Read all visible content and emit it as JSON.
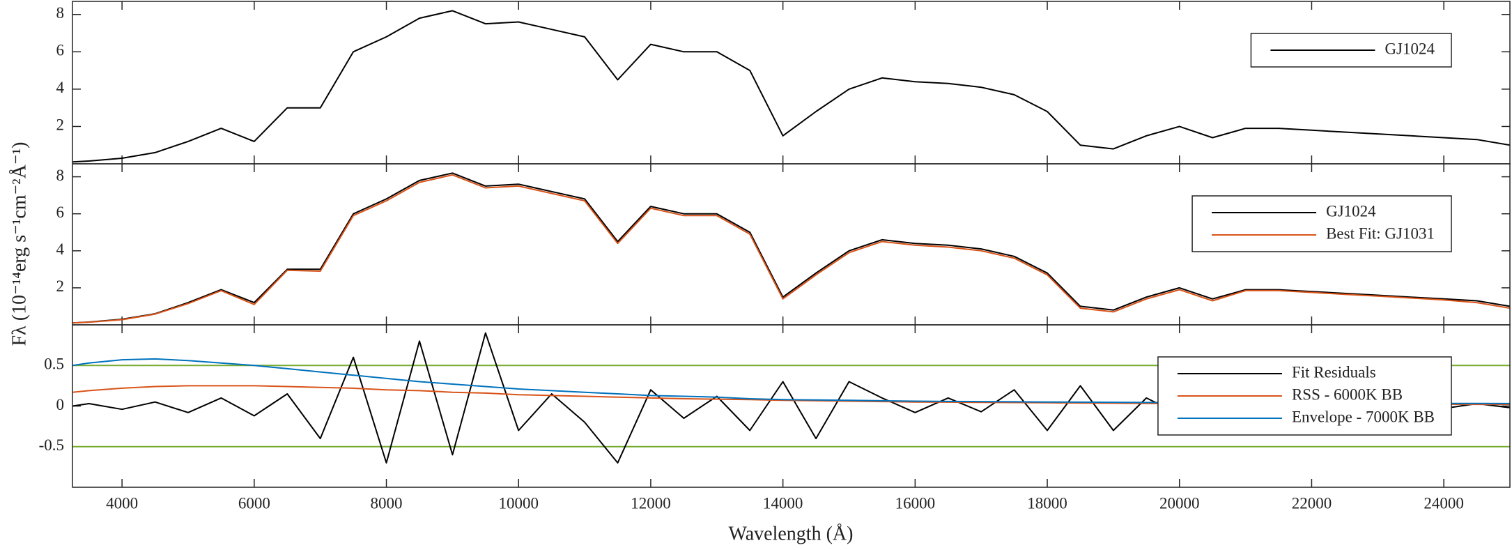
{
  "chart_data": [
    {
      "type": "line",
      "x": [
        3250,
        3500,
        4000,
        4500,
        5000,
        5500,
        6000,
        6500,
        7000,
        7500,
        8000,
        8500,
        9000,
        9500,
        10000,
        10500,
        11000,
        11500,
        12000,
        12500,
        13000,
        13500,
        14000,
        14500,
        15000,
        15500,
        16000,
        16500,
        17000,
        17500,
        18000,
        18500,
        19000,
        19500,
        20000,
        20500,
        21000,
        21500,
        22000,
        22500,
        23000,
        23500,
        24000,
        24500,
        25000
      ],
      "series": [
        {
          "name": "GJ1024",
          "color": "#000000",
          "values": [
            0.1,
            0.15,
            0.3,
            0.6,
            1.2,
            1.9,
            1.2,
            3.0,
            3.0,
            6.0,
            6.8,
            7.8,
            8.2,
            7.5,
            7.6,
            7.2,
            6.8,
            4.5,
            6.4,
            6.0,
            6.0,
            5.0,
            1.5,
            2.8,
            4.0,
            4.6,
            4.4,
            4.3,
            4.1,
            3.7,
            2.8,
            1.0,
            0.8,
            1.5,
            2.0,
            1.4,
            1.9,
            1.9,
            1.8,
            1.7,
            1.6,
            1.5,
            1.4,
            1.3,
            1.0
          ]
        }
      ],
      "xlim": [
        3250,
        25000
      ],
      "ylim": [
        0,
        8.7
      ],
      "yticks": [
        2,
        4,
        6,
        8
      ],
      "legend": "upper right"
    },
    {
      "type": "line",
      "y_label": "Fλ (10⁻¹⁴erg s⁻¹cm⁻²Å⁻¹)",
      "x": [
        3250,
        3500,
        4000,
        4500,
        5000,
        5500,
        6000,
        6500,
        7000,
        7500,
        8000,
        8500,
        9000,
        9500,
        10000,
        10500,
        11000,
        11500,
        12000,
        12500,
        13000,
        13500,
        14000,
        14500,
        15000,
        15500,
        16000,
        16500,
        17000,
        17500,
        18000,
        18500,
        19000,
        19500,
        20000,
        20500,
        21000,
        21500,
        22000,
        22500,
        23000,
        23500,
        24000,
        24500,
        25000
      ],
      "series": [
        {
          "name": "GJ1024",
          "color": "#000000",
          "values": [
            0.1,
            0.15,
            0.3,
            0.6,
            1.2,
            1.9,
            1.2,
            3.0,
            3.0,
            6.0,
            6.8,
            7.8,
            8.2,
            7.5,
            7.6,
            7.2,
            6.8,
            4.5,
            6.4,
            6.0,
            6.0,
            5.0,
            1.5,
            2.8,
            4.0,
            4.6,
            4.4,
            4.3,
            4.1,
            3.7,
            2.8,
            1.0,
            0.8,
            1.5,
            2.0,
            1.4,
            1.9,
            1.9,
            1.8,
            1.7,
            1.6,
            1.5,
            1.4,
            1.3,
            1.0
          ]
        },
        {
          "name": "Best Fit: GJ1031",
          "color": "#d95319",
          "values": [
            0.1,
            0.14,
            0.28,
            0.58,
            1.15,
            1.85,
            1.1,
            2.95,
            2.9,
            5.9,
            6.7,
            7.7,
            8.1,
            7.4,
            7.5,
            7.1,
            6.7,
            4.4,
            6.3,
            5.9,
            5.9,
            4.9,
            1.4,
            2.7,
            3.9,
            4.5,
            4.3,
            4.2,
            4.0,
            3.6,
            2.7,
            0.9,
            0.7,
            1.4,
            1.9,
            1.3,
            1.85,
            1.85,
            1.75,
            1.65,
            1.55,
            1.45,
            1.35,
            1.2,
            0.9
          ]
        }
      ],
      "xlim": [
        3250,
        25000
      ],
      "ylim": [
        0,
        8.7
      ],
      "yticks": [
        2,
        4,
        6,
        8
      ],
      "legend": "upper right"
    },
    {
      "type": "line",
      "x_label": "Wavelength (Å)",
      "x": [
        3250,
        3500,
        4000,
        4500,
        5000,
        5500,
        6000,
        6500,
        7000,
        7500,
        8000,
        8500,
        9000,
        9500,
        10000,
        10500,
        11000,
        11500,
        12000,
        12500,
        13000,
        13500,
        14000,
        14500,
        15000,
        15500,
        16000,
        16500,
        17000,
        17500,
        18000,
        18500,
        19000,
        19500,
        20000,
        20500,
        21000,
        21500,
        22000,
        22500,
        23000,
        23500,
        24000,
        24500,
        25000
      ],
      "series": [
        {
          "name": "Fit Residuals",
          "color": "#000000",
          "values": [
            0.0,
            0.03,
            -0.04,
            0.05,
            -0.08,
            0.1,
            -0.12,
            0.15,
            -0.4,
            0.6,
            -0.7,
            0.8,
            -0.6,
            0.9,
            -0.3,
            0.15,
            -0.2,
            -0.7,
            0.2,
            -0.15,
            0.12,
            -0.3,
            0.3,
            -0.4,
            0.3,
            0.1,
            -0.08,
            0.1,
            -0.07,
            0.2,
            -0.3,
            0.25,
            -0.3,
            0.1,
            -0.1,
            0.05,
            -0.04,
            0.05,
            -0.04,
            0.04,
            -0.03,
            0.04,
            -0.03,
            0.03,
            -0.02
          ]
        },
        {
          "name": "RSS - 6000K BB",
          "color": "#d95319",
          "values": [
            0.17,
            0.19,
            0.22,
            0.24,
            0.25,
            0.25,
            0.25,
            0.24,
            0.23,
            0.22,
            0.2,
            0.19,
            0.17,
            0.16,
            0.14,
            0.13,
            0.12,
            0.11,
            0.1,
            0.09,
            0.085,
            0.08,
            0.07,
            0.065,
            0.06,
            0.055,
            0.05,
            0.048,
            0.045,
            0.043,
            0.04,
            0.038,
            0.035,
            0.033,
            0.03,
            0.029,
            0.028,
            0.027,
            0.026,
            0.025,
            0.024,
            0.023,
            0.022,
            0.021,
            0.02
          ]
        },
        {
          "name": "Envelope - 7000K BB",
          "color": "#0072bd",
          "values": [
            0.5,
            0.53,
            0.57,
            0.58,
            0.56,
            0.53,
            0.5,
            0.46,
            0.42,
            0.38,
            0.34,
            0.3,
            0.27,
            0.24,
            0.21,
            0.19,
            0.17,
            0.15,
            0.13,
            0.12,
            0.11,
            0.09,
            0.08,
            0.075,
            0.07,
            0.065,
            0.06,
            0.057,
            0.055,
            0.052,
            0.05,
            0.048,
            0.046,
            0.044,
            0.042,
            0.04,
            0.039,
            0.038,
            0.037,
            0.036,
            0.035,
            0.034,
            0.033,
            0.032,
            0.031
          ]
        }
      ],
      "hlines": [
        0.5,
        -0.5
      ],
      "hline_color": "#77ac30",
      "xlim": [
        3250,
        25000
      ],
      "ylim": [
        -1,
        1
      ],
      "xticks": [
        4000,
        6000,
        8000,
        10000,
        12000,
        14000,
        16000,
        18000,
        20000,
        22000,
        24000
      ],
      "yticks": [
        -0.5,
        0,
        0.5
      ],
      "legend": "upper right"
    }
  ]
}
